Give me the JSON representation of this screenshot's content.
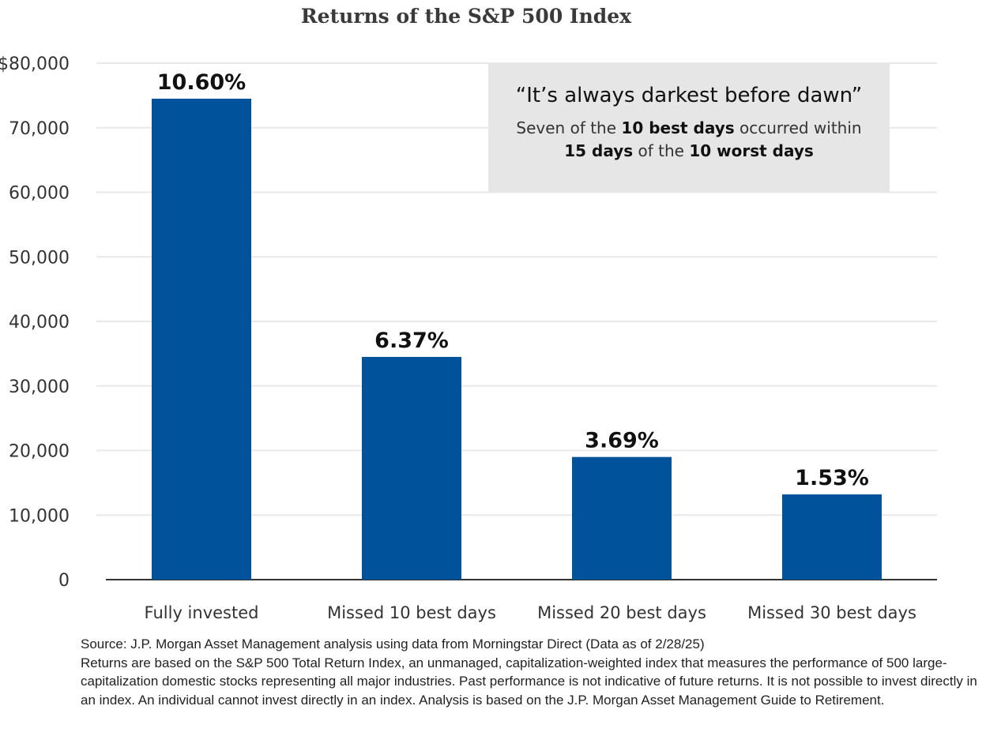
{
  "chart_data": {
    "type": "bar",
    "title": "Returns of the S&P 500 Index",
    "categories": [
      "Fully invested",
      "Missed 10 best days",
      "Missed 20 best days",
      "Missed 30 best days"
    ],
    "values": [
      74500,
      34500,
      19000,
      13200
    ],
    "data_labels": [
      "10.60%",
      "6.37%",
      "3.69%",
      "1.53%"
    ],
    "ylim": [
      0,
      80000
    ],
    "yticks": [
      0,
      10000,
      20000,
      30000,
      40000,
      50000,
      60000,
      70000,
      80000
    ],
    "ytick_labels": [
      "0",
      "10,000",
      "20,000",
      "30,000",
      "40,000",
      "50,000",
      "60,000",
      "70,000",
      "$80,000"
    ],
    "grid": true,
    "bar_color": "#00529b",
    "annotation": {
      "quote": "“It’s always darkest before dawn”",
      "line1_pre": "Seven of the ",
      "line1_bold": "10 best days",
      "line1_post": " occurred within",
      "line2_bold1": "15 days",
      "line2_mid": " of the ",
      "line2_bold2": "10 worst days"
    }
  },
  "footnote": {
    "source": "Source: J.P. Morgan Asset Management analysis using data from Morningstar Direct (Data as of 2/28/25)",
    "body": "Returns are based on the S&P 500 Total Return Index, an unmanaged, capitalization-weighted index that measures the performance of 500 large-capitalization domestic stocks representing all major industries. Past performance is not indicative of future returns. It is not possible to invest directly in an index. An individual cannot invest directly in an index. Analysis is based on the J.P. Morgan Asset Management Guide to Retirement."
  }
}
